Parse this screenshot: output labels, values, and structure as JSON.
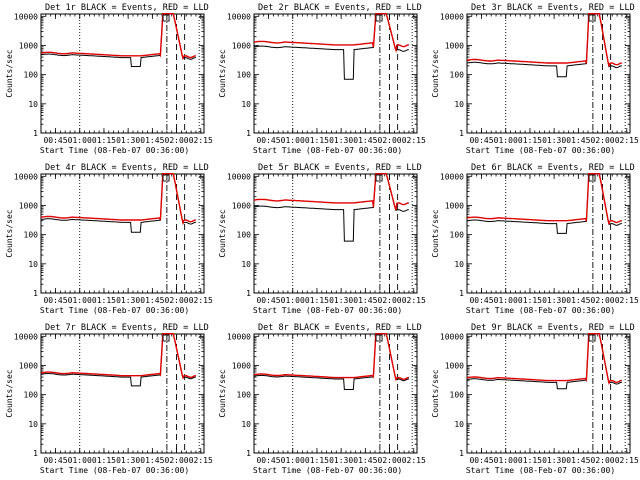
{
  "chart_data": {
    "type": "line",
    "time_ticks": [
      "00:45",
      "01:00",
      "01:15",
      "01:30",
      "01:45",
      "02:00",
      "02:15"
    ],
    "xlabel": "Start Time (08-Feb-07 00:36:00)",
    "ylabel": "Counts/sec",
    "y_ticks": [
      "1",
      "10",
      "100",
      "1000",
      "10000"
    ],
    "ylim": [
      1,
      12000
    ],
    "xlim_minutes_after_start": [
      0,
      101
    ],
    "y_scale": "log",
    "markers": [
      "dotted",
      "dash-dot",
      "dashed",
      "dashed",
      "dotted"
    ],
    "series_styles": {
      "events": "#000000",
      "lld": "#e00000"
    },
    "panels": [
      {
        "title": "Det 1r BLACK = Events, RED = LLD",
        "base": 480,
        "bgo": 1.15,
        "dip": 190,
        "peak": 12000
      },
      {
        "title": "Det 2r BLACK = Events, RED = LLD",
        "base": 900,
        "bgo": 1.45,
        "dip": 70,
        "peak": 12000
      },
      {
        "title": "Det 3r BLACK = Events, RED = LLD",
        "base": 250,
        "bgo": 1.25,
        "dip": 85,
        "peak": 12000
      },
      {
        "title": "Det 4r BLACK = Events, RED = LLD",
        "base": 330,
        "bgo": 1.2,
        "dip": 120,
        "peak": 12000
      },
      {
        "title": "Det 5r BLACK = Events, RED = LLD",
        "base": 900,
        "bgo": 1.7,
        "dip": 60,
        "peak": 12000
      },
      {
        "title": "Det 6r BLACK = Events, RED = LLD",
        "base": 300,
        "bgo": 1.25,
        "dip": 110,
        "peak": 12000
      },
      {
        "title": "Det 7r BLACK = Events, RED = LLD",
        "base": 500,
        "bgo": 1.12,
        "dip": 200,
        "peak": 12000
      },
      {
        "title": "Det 8r BLACK = Events, RED = LLD",
        "base": 430,
        "bgo": 1.12,
        "dip": 150,
        "peak": 12000
      },
      {
        "title": "Det 9r BLACK = Events, RED = LLD",
        "base": 330,
        "bgo": 1.15,
        "dip": 160,
        "peak": 12000
      }
    ]
  }
}
